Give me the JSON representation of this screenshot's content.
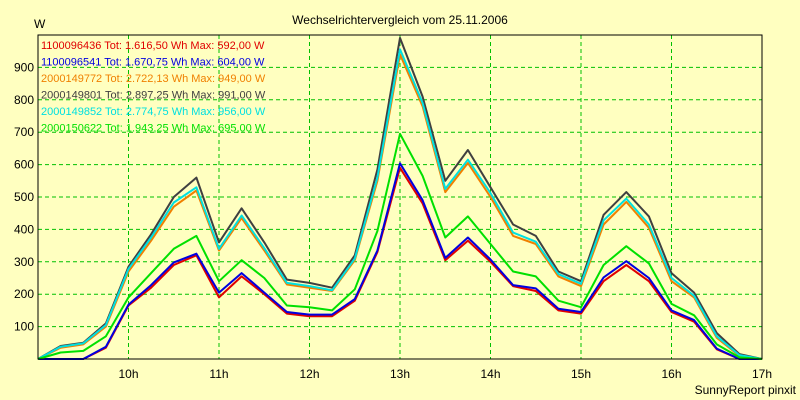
{
  "chart_data": {
    "type": "line",
    "title": "Wechselrichtervergleich vom 25.11.2006",
    "ylabel": "W",
    "xlabel": "",
    "footer": "SunnyReport pinxit",
    "grid": true,
    "legend_position": "top-left",
    "xlim": [
      9.0,
      17.0
    ],
    "ylim": [
      0,
      1000
    ],
    "x_ticks": [
      10,
      11,
      12,
      13,
      14,
      15,
      16,
      17
    ],
    "x_tick_labels": [
      "10h",
      "11h",
      "12h",
      "13h",
      "14h",
      "15h",
      "16h",
      "17h"
    ],
    "y_ticks": [
      100,
      200,
      300,
      400,
      500,
      600,
      700,
      800,
      900
    ],
    "y_tick_labels": [
      "100",
      "200",
      "300",
      "400",
      "500",
      "600",
      "700",
      "800",
      "900"
    ],
    "x": [
      9.0,
      9.25,
      9.5,
      9.75,
      10.0,
      10.25,
      10.5,
      10.75,
      11.0,
      11.25,
      11.5,
      11.75,
      12.0,
      12.25,
      12.5,
      12.75,
      13.0,
      13.25,
      13.5,
      13.75,
      14.0,
      14.25,
      14.5,
      14.75,
      15.0,
      15.25,
      15.5,
      15.75,
      16.0,
      16.25,
      16.5,
      16.75,
      17.0
    ],
    "series": [
      {
        "name": "1100096436 Tot: 1.616,50 Wh Max: 592,00 W",
        "color": "#e00000",
        "values": [
          0,
          0,
          0,
          35,
          165,
          220,
          290,
          320,
          190,
          255,
          200,
          140,
          132,
          132,
          180,
          330,
          590,
          480,
          305,
          365,
          300,
          225,
          210,
          150,
          140,
          240,
          290,
          240,
          145,
          115,
          30,
          0,
          0
        ]
      },
      {
        "name": "1100096541 Tot: 1.670,75 Wh Max: 604,00 W",
        "color": "#0000e0",
        "values": [
          0,
          0,
          0,
          38,
          168,
          228,
          298,
          325,
          205,
          265,
          205,
          145,
          137,
          137,
          185,
          335,
          604,
          490,
          312,
          375,
          307,
          228,
          218,
          155,
          145,
          252,
          302,
          250,
          150,
          120,
          32,
          0,
          0
        ]
      },
      {
        "name": "2000149772 Tot: 2.722,13 Wh Max: 949,00 W",
        "color": "#f08000",
        "values": [
          0,
          35,
          45,
          100,
          270,
          365,
          470,
          520,
          335,
          435,
          335,
          230,
          220,
          210,
          305,
          550,
          940,
          780,
          515,
          605,
          500,
          380,
          355,
          255,
          225,
          415,
          485,
          405,
          240,
          190,
          65,
          10,
          0
        ]
      },
      {
        "name": "2000149801 Tot: 2.897,25 Wh Max: 991,00 W",
        "color": "#404040",
        "values": [
          0,
          40,
          50,
          110,
          285,
          385,
          500,
          560,
          360,
          465,
          360,
          245,
          235,
          220,
          320,
          585,
          991,
          810,
          550,
          645,
          530,
          415,
          380,
          270,
          240,
          445,
          515,
          440,
          265,
          205,
          80,
          15,
          0
        ]
      },
      {
        "name": "2000149852 Tot: 2.774,75 Wh Max: 956,00 W",
        "color": "#00e0e0",
        "values": [
          0,
          38,
          48,
          105,
          278,
          375,
          483,
          530,
          340,
          443,
          342,
          235,
          225,
          212,
          310,
          560,
          956,
          790,
          525,
          615,
          512,
          390,
          362,
          262,
          232,
          428,
          495,
          415,
          250,
          195,
          70,
          12,
          0
        ]
      },
      {
        "name": "2000150622 Tot: 1.943,25 Wh Max: 695,00 W",
        "color": "#00e000",
        "values": [
          0,
          20,
          25,
          70,
          190,
          265,
          340,
          380,
          240,
          305,
          250,
          165,
          160,
          150,
          215,
          395,
          695,
          565,
          375,
          440,
          355,
          270,
          255,
          180,
          160,
          290,
          348,
          295,
          170,
          135,
          45,
          5,
          0
        ]
      }
    ]
  }
}
